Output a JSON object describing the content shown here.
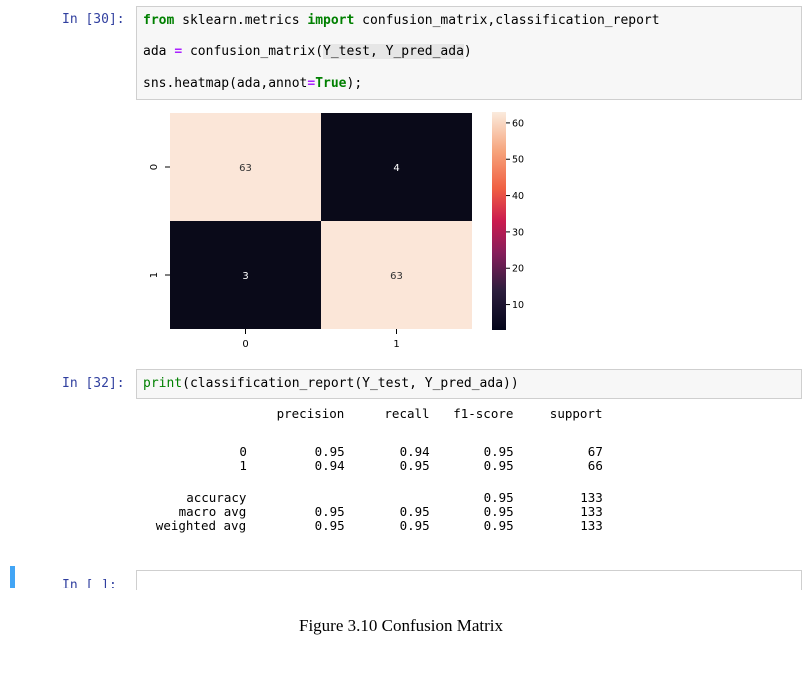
{
  "cell30": {
    "prompt": "In [30]:",
    "line1": {
      "kw1": "from",
      "mod": " sklearn.metrics ",
      "kw2": "import",
      "rest": " confusion_matrix,classification_report"
    },
    "line2": {
      "a": "ada ",
      "eq": "=",
      "b": " confusion_matrix(",
      "hl": "Y_test, Y_pred_ada",
      "c": ")"
    },
    "line3": {
      "a": "sns.heatmap(ada,annot",
      "eq": "=",
      "kw": "True",
      "c": ");"
    }
  },
  "heatmap": {
    "matrix": [
      [
        63,
        4
      ],
      [
        3,
        63
      ]
    ],
    "xticks": [
      "0",
      "1"
    ],
    "yticks": [
      "0",
      "1"
    ],
    "colorbar_ticks": [
      "60",
      "50",
      "40",
      "30",
      "20",
      "10"
    ],
    "colors": {
      "high": "#fbe6d8",
      "low": "#0a0a19",
      "annot_light": "#ffffff",
      "annot_dark": "#333333"
    }
  },
  "cell32": {
    "prompt": "In [32]:",
    "code": {
      "fn": "print",
      "rest": "(classification_report(Y_test, Y_pred_ada))"
    },
    "report_header": [
      "precision",
      "recall",
      "f1-score",
      "support"
    ],
    "report_rows": [
      {
        "label": "0",
        "values": [
          "0.95",
          "0.94",
          "0.95",
          "67"
        ]
      },
      {
        "label": "1",
        "values": [
          "0.94",
          "0.95",
          "0.95",
          "66"
        ]
      }
    ],
    "summary_rows": [
      {
        "label": "accuracy",
        "values": [
          "",
          "",
          "0.95",
          "133"
        ]
      },
      {
        "label": "macro avg",
        "values": [
          "0.95",
          "0.95",
          "0.95",
          "133"
        ]
      },
      {
        "label": "weighted avg",
        "values": [
          "0.95",
          "0.95",
          "0.95",
          "133"
        ]
      }
    ]
  },
  "next_cell": {
    "prompt": "In [ ]:"
  },
  "caption": "Figure 3.10 Confusion Matrix"
}
